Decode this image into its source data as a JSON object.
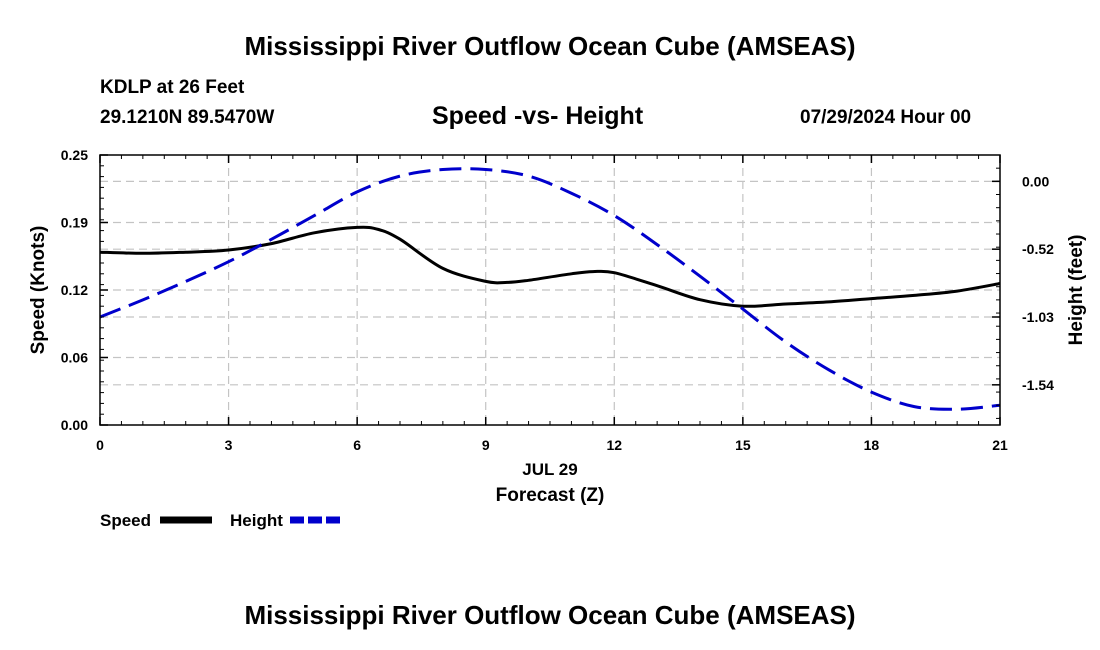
{
  "header": {
    "title": "Mississippi River Outflow Ocean Cube (AMSEAS)",
    "station": "KDLP at 26 Feet",
    "coordinates": "29.1210N  89.5470W",
    "chart_subtitle": "Speed -vs- Height",
    "datetime": "07/29/2024 Hour 00"
  },
  "footer": {
    "title": "Mississippi River Outflow Ocean Cube (AMSEAS)"
  },
  "chart_data": {
    "type": "line",
    "title": "Speed -vs- Height",
    "xlabel": "Forecast (Z)",
    "xlabel_date": "JUL 29",
    "ylabel": "Speed (Knots)",
    "y2label": "Height (feet)",
    "xlim": [
      0,
      21
    ],
    "ylim": [
      0,
      0.25
    ],
    "y2lim": [
      -1.85,
      0.2
    ],
    "x_ticks": [
      "0",
      "3",
      "6",
      "9",
      "12",
      "15",
      "18",
      "21"
    ],
    "x_tick_values": [
      0,
      3,
      6,
      9,
      12,
      15,
      18,
      21
    ],
    "y_ticks": [
      "0.00",
      "0.06",
      "0.12",
      "0.19",
      "0.25"
    ],
    "y_tick_values": [
      0.0,
      0.0625,
      0.125,
      0.1875,
      0.25
    ],
    "y2_ticks": [
      "0.00",
      "-0.52",
      "-1.03",
      "-1.54"
    ],
    "y2_tick_values": [
      0.0,
      -0.515,
      -1.03,
      -1.545
    ],
    "grid": true,
    "legend": [
      "Speed",
      "Height"
    ],
    "series": [
      {
        "name": "Speed",
        "axis": "left",
        "color": "#000000",
        "dash": "solid",
        "x": [
          0,
          1,
          2,
          3,
          4,
          5,
          6,
          6.5,
          7,
          8,
          9,
          9.5,
          10,
          11,
          11.5,
          12,
          13,
          14,
          15,
          16,
          17,
          18,
          19,
          20,
          21
        ],
        "values": [
          0.16,
          0.159,
          0.16,
          0.162,
          0.168,
          0.178,
          0.183,
          0.181,
          0.172,
          0.145,
          0.133,
          0.132,
          0.134,
          0.14,
          0.142,
          0.141,
          0.129,
          0.116,
          0.11,
          0.112,
          0.114,
          0.117,
          0.12,
          0.124,
          0.131
        ]
      },
      {
        "name": "Height",
        "axis": "right",
        "color": "#0000cc",
        "dash": "dashed",
        "x": [
          0,
          1,
          2,
          3,
          4,
          5,
          6,
          7,
          8,
          9,
          10,
          11,
          12,
          13,
          14,
          15,
          16,
          17,
          18,
          19,
          20,
          21
        ],
        "values": [
          -1.03,
          -0.9,
          -0.76,
          -0.61,
          -0.44,
          -0.26,
          -0.08,
          0.04,
          0.09,
          0.09,
          0.04,
          -0.09,
          -0.26,
          -0.48,
          -0.72,
          -0.97,
          -1.22,
          -1.43,
          -1.6,
          -1.71,
          -1.73,
          -1.7
        ]
      }
    ]
  }
}
